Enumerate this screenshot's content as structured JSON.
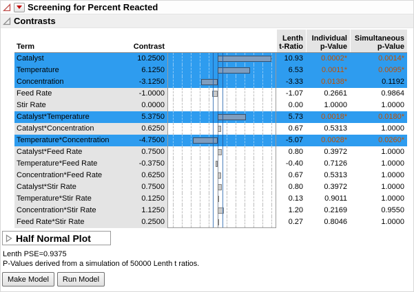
{
  "window": {
    "title": "Screening for Percent Reacted"
  },
  "sections": {
    "contrasts": {
      "title": "Contrasts"
    },
    "half_normal": {
      "title": "Half Normal Plot"
    }
  },
  "table": {
    "headers": {
      "term": "Term",
      "contrast": "Contrast",
      "lenth": [
        "Lenth",
        "t-Ratio"
      ],
      "individual": [
        "Individual",
        "p-Value"
      ],
      "simultaneous": [
        "Simultaneous",
        "p-Value"
      ]
    },
    "rows": [
      {
        "term": "Catalyst",
        "contrast": "10.2500",
        "t_ratio": "10.93",
        "individual_p": "0.0002*",
        "simultaneous_p": "0.0014*",
        "highlighted": true
      },
      {
        "term": "Temperature",
        "contrast": "6.1250",
        "t_ratio": "6.53",
        "individual_p": "0.0011*",
        "simultaneous_p": "0.0095*",
        "highlighted": true
      },
      {
        "term": "Concentration",
        "contrast": "-3.1250",
        "t_ratio": "-3.33",
        "individual_p": "0.0138*",
        "simultaneous_p": "0.1192",
        "highlighted": true
      },
      {
        "term": "Feed Rate",
        "contrast": "-1.0000",
        "t_ratio": "-1.07",
        "individual_p": "0.2661",
        "simultaneous_p": "0.9864",
        "highlighted": false
      },
      {
        "term": "Stir Rate",
        "contrast": "0.0000",
        "t_ratio": "0.00",
        "individual_p": "1.0000",
        "simultaneous_p": "1.0000",
        "highlighted": false
      },
      {
        "term": "Catalyst*Temperature",
        "contrast": "5.3750",
        "t_ratio": "5.73",
        "individual_p": "0.0018*",
        "simultaneous_p": "0.0180*",
        "highlighted": true
      },
      {
        "term": "Catalyst*Concentration",
        "contrast": "0.6250",
        "t_ratio": "0.67",
        "individual_p": "0.5313",
        "simultaneous_p": "1.0000",
        "highlighted": false
      },
      {
        "term": "Temperature*Concentration",
        "contrast": "-4.7500",
        "t_ratio": "-5.07",
        "individual_p": "0.0028*",
        "simultaneous_p": "0.0260*",
        "highlighted": true
      },
      {
        "term": "Catalyst*Feed Rate",
        "contrast": "0.7500",
        "t_ratio": "0.80",
        "individual_p": "0.3972",
        "simultaneous_p": "1.0000",
        "highlighted": false
      },
      {
        "term": "Temperature*Feed Rate",
        "contrast": "-0.3750",
        "t_ratio": "-0.40",
        "individual_p": "0.7126",
        "simultaneous_p": "1.0000",
        "highlighted": false
      },
      {
        "term": "Concentration*Feed Rate",
        "contrast": "0.6250",
        "t_ratio": "0.67",
        "individual_p": "0.5313",
        "simultaneous_p": "1.0000",
        "highlighted": false
      },
      {
        "term": "Catalyst*Stir Rate",
        "contrast": "0.7500",
        "t_ratio": "0.80",
        "individual_p": "0.3972",
        "simultaneous_p": "1.0000",
        "highlighted": false
      },
      {
        "term": "Temperature*Stir Rate",
        "contrast": "0.1250",
        "t_ratio": "0.13",
        "individual_p": "0.9011",
        "simultaneous_p": "1.0000",
        "highlighted": false
      },
      {
        "term": "Concentration*Stir Rate",
        "contrast": "1.1250",
        "t_ratio": "1.20",
        "individual_p": "0.2169",
        "simultaneous_p": "0.9550",
        "highlighted": false
      },
      {
        "term": "Feed Rate*Stir Rate",
        "contrast": "0.2500",
        "t_ratio": "0.27",
        "individual_p": "0.8046",
        "simultaneous_p": "1.0000",
        "highlighted": false
      }
    ]
  },
  "chart_data": {
    "type": "bar",
    "orientation": "horizontal",
    "title": "Contrast bar chart",
    "categories": [
      "Catalyst",
      "Temperature",
      "Concentration",
      "Feed Rate",
      "Stir Rate",
      "Catalyst*Temperature",
      "Catalyst*Concentration",
      "Temperature*Concentration",
      "Catalyst*Feed Rate",
      "Temperature*Feed Rate",
      "Concentration*Feed Rate",
      "Catalyst*Stir Rate",
      "Temperature*Stir Rate",
      "Concentration*Stir Rate",
      "Feed Rate*Stir Rate"
    ],
    "values": [
      10.25,
      6.125,
      -3.125,
      -1.0,
      0.0,
      5.375,
      0.625,
      -4.75,
      0.75,
      -0.375,
      0.625,
      0.75,
      0.125,
      1.125,
      0.25
    ],
    "xlim": [
      -9.5,
      11.3
    ],
    "zero_line": 0,
    "reference_lines": [
      -0.9375,
      0.9375
    ],
    "grid": "dashed-vertical"
  },
  "footer": {
    "lenth_pse": "Lenth PSE=0.9375",
    "pvalue_note": "P-Values derived from a simulation of 50000 Lenth t ratios.",
    "make_model": "Make Model",
    "run_model": "Run Model"
  },
  "colors": {
    "row_highlight": "#2e9cef",
    "significant_p": "#c05000",
    "bar_fill": "#cccccc",
    "bar_fill_highlighted": "#7f9dbe",
    "red_triangle": "#c00000",
    "header_gray": "#e4e4e4"
  }
}
